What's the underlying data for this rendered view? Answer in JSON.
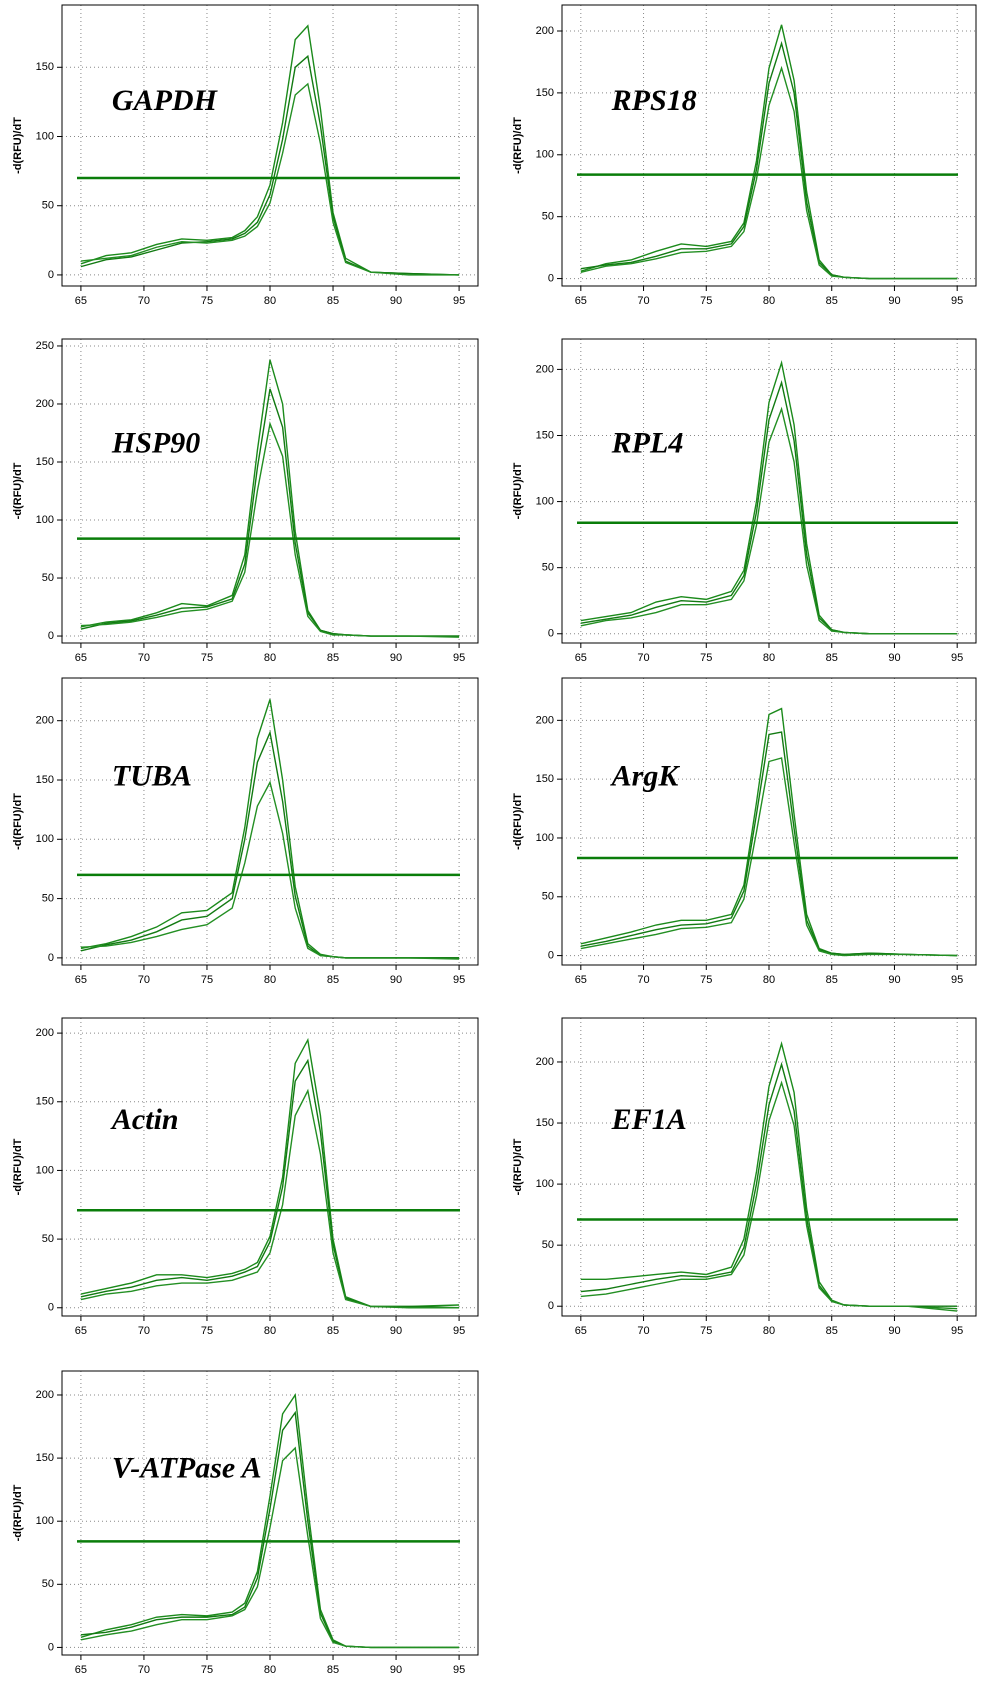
{
  "chart_data": [
    {
      "type": "line",
      "annotation": "GAPDH",
      "y_label": "-d(RFU)/dT",
      "grid": true,
      "xlim": [
        63.5,
        96.5
      ],
      "ylim": [
        -8,
        195
      ],
      "xticks": [
        65,
        70,
        75,
        80,
        85,
        90,
        95
      ],
      "yticks": [
        0,
        50,
        100,
        150
      ],
      "threshold": 70,
      "threshold_color": "#0a7d0a",
      "x": [
        65,
        67,
        69,
        71,
        73,
        75,
        77,
        78,
        79,
        80,
        81,
        82,
        83,
        84,
        85,
        86,
        88,
        91,
        95
      ],
      "series": [
        {
          "color": "#1b8a1b",
          "values": [
            8,
            14,
            16,
            22,
            26,
            25,
            27,
            32,
            42,
            65,
            110,
            170,
            180,
            120,
            45,
            12,
            2,
            1,
            0
          ]
        },
        {
          "color": "#127a12",
          "values": [
            6,
            11,
            13,
            18,
            23,
            24,
            26,
            30,
            38,
            58,
            98,
            150,
            158,
            108,
            42,
            10,
            2,
            1,
            0
          ]
        },
        {
          "color": "#238f23",
          "values": [
            10,
            12,
            14,
            20,
            24,
            23,
            25,
            28,
            35,
            52,
            88,
            130,
            138,
            95,
            38,
            9,
            2,
            0,
            0
          ]
        }
      ]
    },
    {
      "type": "line",
      "annotation": "RPS18",
      "y_label": "-d(RFU)/dT",
      "grid": true,
      "xlim": [
        63.5,
        96.5
      ],
      "ylim": [
        -6,
        221
      ],
      "xticks": [
        65,
        70,
        75,
        80,
        85,
        90,
        95
      ],
      "yticks": [
        0,
        50,
        100,
        150,
        200
      ],
      "threshold": 84,
      "threshold_color": "#0a7d0a",
      "x": [
        65,
        67,
        69,
        71,
        73,
        75,
        77,
        78,
        79,
        80,
        81,
        82,
        83,
        84,
        85,
        86,
        88,
        91,
        95
      ],
      "series": [
        {
          "color": "#1b8a1b",
          "values": [
            6,
            12,
            15,
            22,
            28,
            26,
            30,
            45,
            95,
            170,
            205,
            160,
            70,
            15,
            3,
            1,
            0,
            0,
            0
          ]
        },
        {
          "color": "#127a12",
          "values": [
            8,
            11,
            13,
            18,
            24,
            24,
            28,
            42,
            88,
            158,
            190,
            150,
            62,
            13,
            3,
            1,
            0,
            0,
            0
          ]
        },
        {
          "color": "#238f23",
          "values": [
            5,
            10,
            12,
            16,
            21,
            22,
            26,
            38,
            80,
            140,
            170,
            135,
            55,
            11,
            2,
            1,
            0,
            0,
            0
          ]
        }
      ]
    },
    {
      "type": "line",
      "annotation": "HSP90",
      "y_label": "-d(RFU)/dT",
      "grid": true,
      "xlim": [
        63.5,
        96.5
      ],
      "ylim": [
        -6,
        256
      ],
      "xticks": [
        65,
        70,
        75,
        80,
        85,
        90,
        95
      ],
      "yticks": [
        0,
        50,
        100,
        150,
        200,
        250
      ],
      "threshold": 84,
      "threshold_color": "#0a7d0a",
      "x": [
        65,
        67,
        69,
        71,
        73,
        75,
        77,
        78,
        79,
        80,
        81,
        82,
        83,
        84,
        85,
        86,
        88,
        91,
        95
      ],
      "series": [
        {
          "color": "#1b8a1b",
          "values": [
            8,
            12,
            14,
            20,
            28,
            26,
            35,
            70,
            160,
            238,
            200,
            90,
            22,
            5,
            2,
            1,
            0,
            0,
            0
          ]
        },
        {
          "color": "#127a12",
          "values": [
            6,
            11,
            13,
            18,
            24,
            25,
            32,
            62,
            145,
            213,
            180,
            80,
            20,
            5,
            2,
            1,
            0,
            0,
            0
          ]
        },
        {
          "color": "#238f23",
          "values": [
            9,
            10,
            12,
            16,
            21,
            23,
            30,
            55,
            125,
            183,
            155,
            70,
            17,
            4,
            1,
            1,
            0,
            0,
            -1
          ]
        }
      ]
    },
    {
      "type": "line",
      "annotation": "RPL4",
      "y_label": "-d(RFU)/dT",
      "grid": true,
      "xlim": [
        63.5,
        96.5
      ],
      "ylim": [
        -7,
        223
      ],
      "xticks": [
        65,
        70,
        75,
        80,
        85,
        90,
        95
      ],
      "yticks": [
        0,
        50,
        100,
        150,
        200
      ],
      "threshold": 84,
      "threshold_color": "#0a7d0a",
      "x": [
        65,
        67,
        69,
        71,
        73,
        75,
        77,
        78,
        79,
        80,
        81,
        82,
        83,
        84,
        85,
        86,
        88,
        91,
        95
      ],
      "series": [
        {
          "color": "#1b8a1b",
          "values": [
            10,
            13,
            16,
            24,
            28,
            26,
            32,
            48,
            100,
            175,
            205,
            158,
            68,
            14,
            3,
            1,
            0,
            0,
            0
          ]
        },
        {
          "color": "#127a12",
          "values": [
            8,
            11,
            14,
            20,
            25,
            24,
            29,
            44,
            92,
            162,
            190,
            146,
            60,
            12,
            3,
            1,
            0,
            0,
            0
          ]
        },
        {
          "color": "#238f23",
          "values": [
            6,
            10,
            12,
            16,
            22,
            22,
            26,
            40,
            82,
            145,
            170,
            130,
            52,
            10,
            2,
            1,
            0,
            0,
            0
          ]
        }
      ]
    },
    {
      "type": "line",
      "annotation": "TUBA",
      "y_label": "-d(RFU)/dT",
      "grid": true,
      "xlim": [
        63.5,
        96.5
      ],
      "ylim": [
        -6,
        236
      ],
      "xticks": [
        65,
        70,
        75,
        80,
        85,
        90,
        95
      ],
      "yticks": [
        0,
        50,
        100,
        150,
        200
      ],
      "threshold": 70,
      "threshold_color": "#0a7d0a",
      "x": [
        65,
        67,
        69,
        71,
        73,
        75,
        77,
        78,
        79,
        80,
        81,
        82,
        83,
        84,
        85,
        86,
        88,
        91,
        95
      ],
      "series": [
        {
          "color": "#1b8a1b",
          "values": [
            8,
            12,
            18,
            26,
            38,
            40,
            55,
            110,
            185,
            218,
            150,
            60,
            12,
            3,
            1,
            0,
            0,
            0,
            0
          ]
        },
        {
          "color": "#127a12",
          "values": [
            6,
            11,
            15,
            22,
            32,
            35,
            50,
            100,
            165,
            190,
            132,
            52,
            10,
            2,
            1,
            0,
            0,
            0,
            0
          ]
        },
        {
          "color": "#238f23",
          "values": [
            9,
            10,
            13,
            18,
            24,
            28,
            42,
            80,
            128,
            148,
            105,
            42,
            8,
            2,
            1,
            0,
            0,
            0,
            -1
          ]
        }
      ]
    },
    {
      "type": "line",
      "annotation": "ArgK",
      "y_label": "-d(RFU)/dT",
      "grid": true,
      "xlim": [
        63.5,
        96.5
      ],
      "ylim": [
        -8,
        236
      ],
      "xticks": [
        65,
        70,
        75,
        80,
        85,
        90,
        95
      ],
      "yticks": [
        0,
        50,
        100,
        150,
        200
      ],
      "threshold": 83,
      "threshold_color": "#0a7d0a",
      "x": [
        65,
        67,
        69,
        71,
        73,
        75,
        77,
        78,
        79,
        80,
        81,
        82,
        83,
        84,
        85,
        86,
        88,
        91,
        95
      ],
      "series": [
        {
          "color": "#1b8a1b",
          "values": [
            10,
            15,
            20,
            26,
            30,
            30,
            35,
            60,
            130,
            205,
            210,
            120,
            35,
            6,
            2,
            1,
            2,
            1,
            0
          ]
        },
        {
          "color": "#127a12",
          "values": [
            8,
            12,
            17,
            22,
            26,
            27,
            32,
            55,
            120,
            188,
            190,
            108,
            30,
            5,
            2,
            1,
            2,
            1,
            0
          ]
        },
        {
          "color": "#238f23",
          "values": [
            6,
            10,
            14,
            18,
            23,
            24,
            28,
            48,
            105,
            165,
            168,
            96,
            26,
            4,
            1,
            0,
            1,
            1,
            0
          ]
        }
      ]
    },
    {
      "type": "line",
      "annotation": "Actin",
      "y_label": "-d(RFU)/dT",
      "grid": true,
      "xlim": [
        63.5,
        96.5
      ],
      "ylim": [
        -6,
        211
      ],
      "xticks": [
        65,
        70,
        75,
        80,
        85,
        90,
        95
      ],
      "yticks": [
        0,
        50,
        100,
        150,
        200
      ],
      "threshold": 71,
      "threshold_color": "#0a7d0a",
      "x": [
        65,
        67,
        69,
        71,
        73,
        75,
        77,
        78,
        79,
        80,
        81,
        82,
        83,
        84,
        85,
        86,
        88,
        91,
        95
      ],
      "series": [
        {
          "color": "#1b8a1b",
          "values": [
            10,
            14,
            18,
            24,
            24,
            22,
            25,
            28,
            33,
            52,
            95,
            178,
            195,
            140,
            50,
            8,
            1,
            1,
            2
          ]
        },
        {
          "color": "#127a12",
          "values": [
            8,
            12,
            15,
            20,
            22,
            20,
            23,
            26,
            30,
            48,
            88,
            165,
            180,
            128,
            46,
            7,
            1,
            1,
            0
          ]
        },
        {
          "color": "#238f23",
          "values": [
            6,
            10,
            12,
            16,
            18,
            18,
            20,
            23,
            26,
            40,
            75,
            140,
            158,
            112,
            40,
            6,
            1,
            0,
            0
          ]
        }
      ]
    },
    {
      "type": "line",
      "annotation": "EF1A",
      "y_label": "-d(RFU)/dT",
      "grid": true,
      "xlim": [
        63.5,
        96.5
      ],
      "ylim": [
        -8,
        236
      ],
      "xticks": [
        65,
        70,
        75,
        80,
        85,
        90,
        95
      ],
      "yticks": [
        0,
        50,
        100,
        150,
        200
      ],
      "threshold": 71,
      "threshold_color": "#0a7d0a",
      "x": [
        65,
        67,
        69,
        71,
        73,
        75,
        77,
        78,
        79,
        80,
        81,
        82,
        83,
        84,
        85,
        86,
        88,
        91,
        95
      ],
      "series": [
        {
          "color": "#1b8a1b",
          "values": [
            22,
            22,
            24,
            26,
            28,
            26,
            32,
            55,
            110,
            180,
            215,
            175,
            80,
            20,
            5,
            1,
            0,
            0,
            -2
          ]
        },
        {
          "color": "#127a12",
          "values": [
            12,
            14,
            18,
            22,
            25,
            24,
            28,
            48,
            100,
            165,
            198,
            160,
            72,
            17,
            4,
            1,
            0,
            0,
            0
          ]
        },
        {
          "color": "#238f23",
          "values": [
            8,
            10,
            14,
            18,
            22,
            22,
            26,
            42,
            90,
            152,
            183,
            148,
            66,
            15,
            4,
            1,
            0,
            0,
            -4
          ]
        }
      ]
    },
    {
      "type": "line",
      "annotation": "V-ATPase A",
      "y_label": "-d(RFU)/dT",
      "grid": true,
      "xlim": [
        63.5,
        96.5
      ],
      "ylim": [
        -6,
        219
      ],
      "xticks": [
        65,
        70,
        75,
        80,
        85,
        90,
        95
      ],
      "yticks": [
        0,
        50,
        100,
        150,
        200
      ],
      "threshold": 84,
      "threshold_color": "#0a7d0a",
      "x": [
        65,
        67,
        69,
        71,
        73,
        75,
        77,
        78,
        79,
        80,
        81,
        82,
        83,
        84,
        85,
        86,
        88,
        91,
        95
      ],
      "series": [
        {
          "color": "#1b8a1b",
          "values": [
            8,
            14,
            18,
            24,
            26,
            25,
            28,
            35,
            60,
            120,
            185,
            200,
            110,
            30,
            6,
            1,
            0,
            0,
            0
          ]
        },
        {
          "color": "#127a12",
          "values": [
            10,
            12,
            16,
            22,
            24,
            24,
            26,
            32,
            55,
            110,
            172,
            186,
            100,
            27,
            5,
            1,
            0,
            0,
            0
          ]
        },
        {
          "color": "#238f23",
          "values": [
            6,
            10,
            13,
            18,
            22,
            22,
            25,
            30,
            48,
            95,
            148,
            158,
            88,
            23,
            4,
            1,
            0,
            0,
            0
          ]
        }
      ]
    }
  ]
}
